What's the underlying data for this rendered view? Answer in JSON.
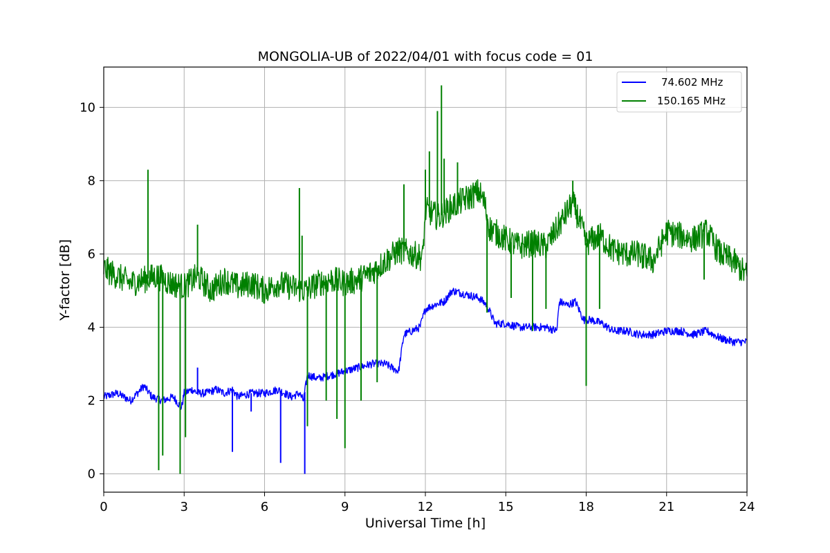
{
  "chart_data": {
    "type": "line",
    "title": "MONGOLIA-UB of 2022/04/01 with focus code = 01",
    "xlabel": "Universal Time [h]",
    "ylabel": "Y-factor [dB]",
    "xlim": [
      0,
      24
    ],
    "ylim": [
      -0.5,
      11.1
    ],
    "xticks": [
      0,
      3,
      6,
      9,
      12,
      15,
      18,
      21,
      24
    ],
    "yticks": [
      0,
      2,
      4,
      6,
      8,
      10
    ],
    "grid": true,
    "legend_position": "top-right",
    "series": [
      {
        "name": "74.602 MHz",
        "color": "#0000ff",
        "x": [
          0,
          0.5,
          1,
          1.5,
          1.8,
          2.2,
          2.6,
          2.9,
          3.0,
          3.3,
          3.5,
          3.8,
          4.2,
          4.5,
          4.8,
          5.0,
          5.5,
          6.0,
          6.5,
          7.0,
          7.3,
          7.45,
          7.6,
          8.0,
          8.5,
          9.0,
          9.5,
          10.0,
          10.5,
          11.0,
          11.2,
          11.5,
          11.8,
          12.0,
          12.3,
          12.7,
          13.0,
          13.5,
          14.0,
          14.3,
          14.6,
          15.0,
          15.5,
          16.0,
          16.5,
          16.9,
          17.0,
          17.3,
          17.6,
          17.9,
          18.2,
          18.6,
          19.0,
          19.5,
          20.0,
          20.5,
          21.0,
          21.5,
          22.0,
          22.5,
          23.0,
          23.5,
          24.0
        ],
        "y": [
          2.1,
          2.2,
          2.0,
          2.4,
          2.1,
          2.0,
          2.1,
          1.8,
          2.2,
          2.3,
          2.2,
          2.2,
          2.3,
          2.2,
          2.3,
          2.1,
          2.2,
          2.2,
          2.3,
          2.1,
          2.2,
          2.0,
          2.7,
          2.6,
          2.7,
          2.8,
          2.9,
          3.0,
          3.0,
          2.8,
          3.8,
          3.9,
          4.0,
          4.5,
          4.6,
          4.7,
          5.0,
          4.9,
          4.8,
          4.6,
          4.1,
          4.1,
          4.0,
          4.0,
          4.0,
          3.9,
          4.7,
          4.6,
          4.7,
          4.2,
          4.2,
          4.1,
          3.9,
          3.9,
          3.8,
          3.8,
          3.9,
          3.9,
          3.8,
          3.9,
          3.7,
          3.6,
          3.6
        ]
      },
      {
        "name": "150.165 MHz",
        "color": "#008000",
        "x": [
          0,
          0.5,
          1,
          1.5,
          2.0,
          2.5,
          3.0,
          3.5,
          4.0,
          4.5,
          5.0,
          5.5,
          6.0,
          6.5,
          7.0,
          7.5,
          8.0,
          8.5,
          9.0,
          9.5,
          10.0,
          10.5,
          11.0,
          11.5,
          11.9,
          12.0,
          12.5,
          13.0,
          13.5,
          14.0,
          14.2,
          14.4,
          15.0,
          15.5,
          16.0,
          16.5,
          17.0,
          17.5,
          17.8,
          18.0,
          18.5,
          19.0,
          19.5,
          20.0,
          20.5,
          21.0,
          21.5,
          22.0,
          22.5,
          23.0,
          23.5,
          24.0
        ],
        "y": [
          5.6,
          5.4,
          5.2,
          5.3,
          5.4,
          5.2,
          5.1,
          5.4,
          5.0,
          5.3,
          5.1,
          5.2,
          5.0,
          5.2,
          5.1,
          5.0,
          5.2,
          5.3,
          5.2,
          5.3,
          5.5,
          5.8,
          6.1,
          6.0,
          5.9,
          7.2,
          7.0,
          7.3,
          7.5,
          7.7,
          7.4,
          6.7,
          6.4,
          6.2,
          6.3,
          6.2,
          6.8,
          7.4,
          6.8,
          6.3,
          6.5,
          6.1,
          6.0,
          6.0,
          5.8,
          6.6,
          6.5,
          6.4,
          6.6,
          6.0,
          5.8,
          5.4
        ]
      }
    ],
    "spikes": {
      "74.602 MHz": [
        [
          4.8,
          0.6
        ],
        [
          6.6,
          0.3
        ],
        [
          7.5,
          0.0
        ],
        [
          5.5,
          1.7
        ],
        [
          3.5,
          2.9
        ]
      ],
      "150.165 MHz": [
        [
          1.65,
          8.3
        ],
        [
          2.05,
          0.1
        ],
        [
          2.2,
          0.5
        ],
        [
          2.85,
          0.0
        ],
        [
          3.05,
          1.0
        ],
        [
          3.5,
          6.8
        ],
        [
          7.3,
          7.8
        ],
        [
          7.4,
          6.5
        ],
        [
          7.6,
          1.3
        ],
        [
          8.3,
          2.0
        ],
        [
          8.7,
          1.5
        ],
        [
          9.0,
          0.7
        ],
        [
          9.6,
          2.0
        ],
        [
          10.2,
          2.5
        ],
        [
          11.2,
          7.9
        ],
        [
          11.6,
          6.2
        ],
        [
          12.0,
          8.3
        ],
        [
          12.15,
          8.8
        ],
        [
          12.45,
          9.9
        ],
        [
          12.6,
          10.6
        ],
        [
          12.7,
          8.6
        ],
        [
          13.2,
          8.5
        ],
        [
          14.3,
          4.4
        ],
        [
          15.2,
          4.8
        ],
        [
          16.0,
          3.9
        ],
        [
          16.5,
          4.5
        ],
        [
          17.5,
          8.0
        ],
        [
          18.0,
          2.4
        ],
        [
          18.5,
          4.5
        ],
        [
          20.1,
          5.6
        ],
        [
          22.4,
          5.3
        ]
      ]
    }
  },
  "legend": {
    "entries": [
      "74.602 MHz",
      "150.165 MHz"
    ]
  }
}
